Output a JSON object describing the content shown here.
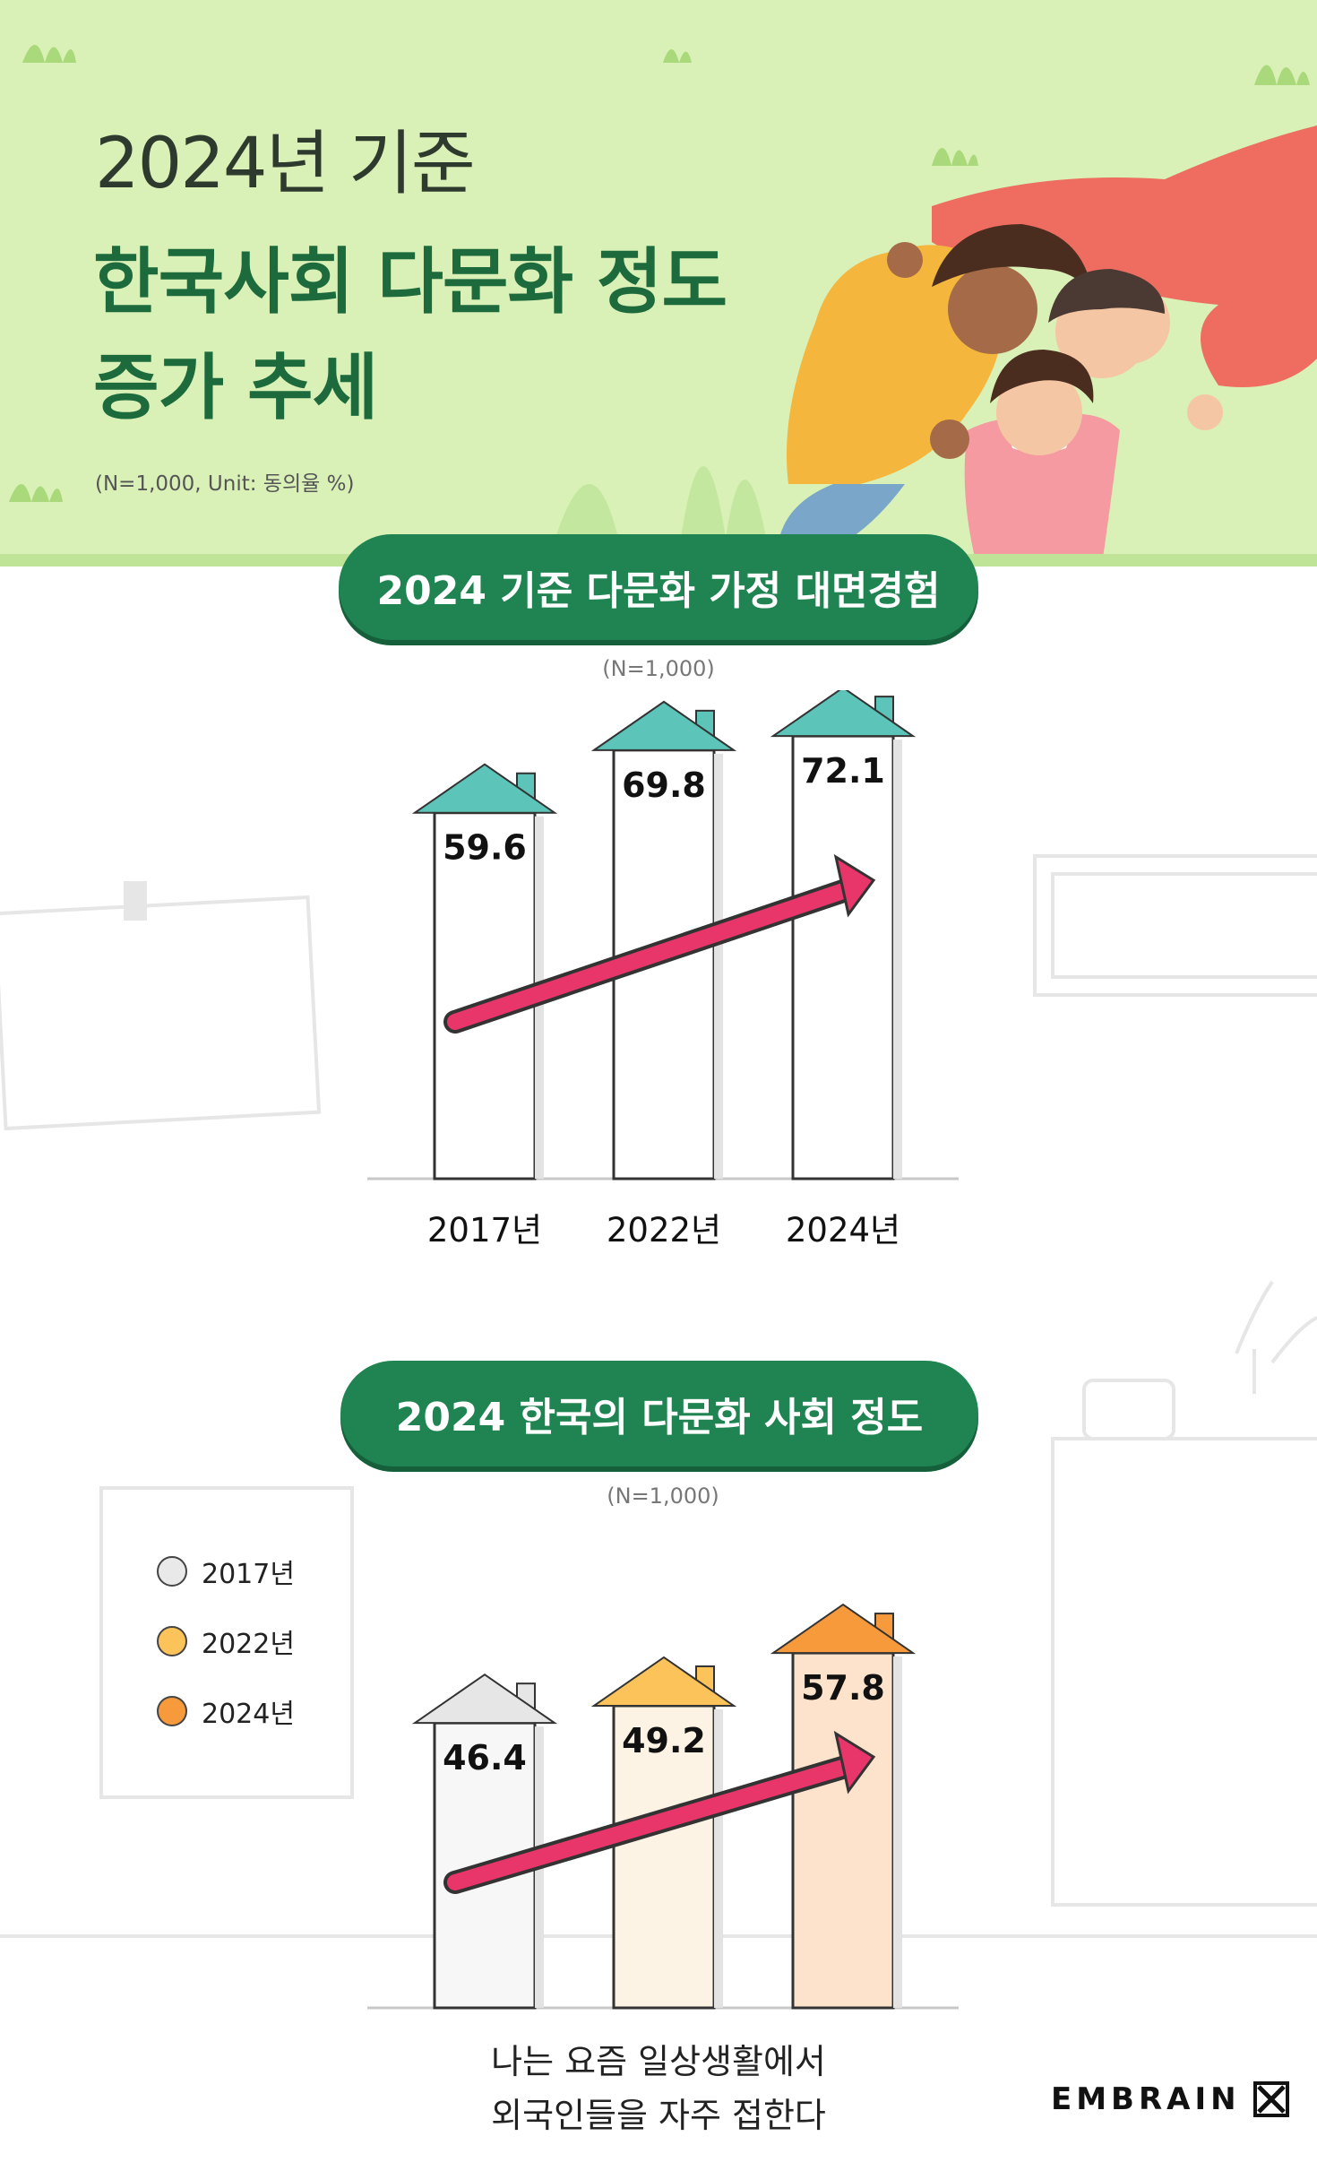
{
  "header": {
    "title_line1": "2024년 기준",
    "title_line2": "한국사회 다문화 정도",
    "title_line3": "증가 추세",
    "note": "(N=1,000, Unit: 동의율 %)"
  },
  "section1": {
    "pill": "2024 기준 다문화 가정 대면경험",
    "sample": "(N=1,000)"
  },
  "section2": {
    "pill": "2024 한국의 다문화 사회 정도",
    "sample": "(N=1,000)",
    "caption_line1": "나는 요즘 일상생활에서",
    "caption_line2": "외국인들을 자주 접한다"
  },
  "legend": [
    {
      "label": "2017년",
      "color": "#e9e9e9"
    },
    {
      "label": "2022년",
      "color": "#fbc35a"
    },
    {
      "label": "2024년",
      "color": "#f79a3c"
    }
  ],
  "brand": {
    "name": "EMBRAIN"
  },
  "chart_data": [
    {
      "type": "bar",
      "title": "2024 기준 다문화 가정 대면경험",
      "categories": [
        "2017년",
        "2022년",
        "2024년"
      ],
      "values": [
        59.6,
        69.8,
        72.1
      ],
      "value_labels": [
        "59.6",
        "69.8",
        "72.1"
      ],
      "bar_color": "#ffffff",
      "roof_color": "#5cc4b8",
      "ylim": [
        0,
        80
      ]
    },
    {
      "type": "bar",
      "title": "2024 한국의 다문화 사회 정도",
      "categories": [
        "2017년",
        "2022년",
        "2024년"
      ],
      "values": [
        46.4,
        49.2,
        57.8
      ],
      "value_labels": [
        "46.4",
        "49.2",
        "57.8"
      ],
      "bar_colors": [
        "#f7f7f7",
        "#fdf3e4",
        "#fde3cc"
      ],
      "roof_colors": [
        "#e6e6e6",
        "#fbc35a",
        "#f79a3c"
      ],
      "ylim": [
        0,
        80
      ]
    }
  ]
}
